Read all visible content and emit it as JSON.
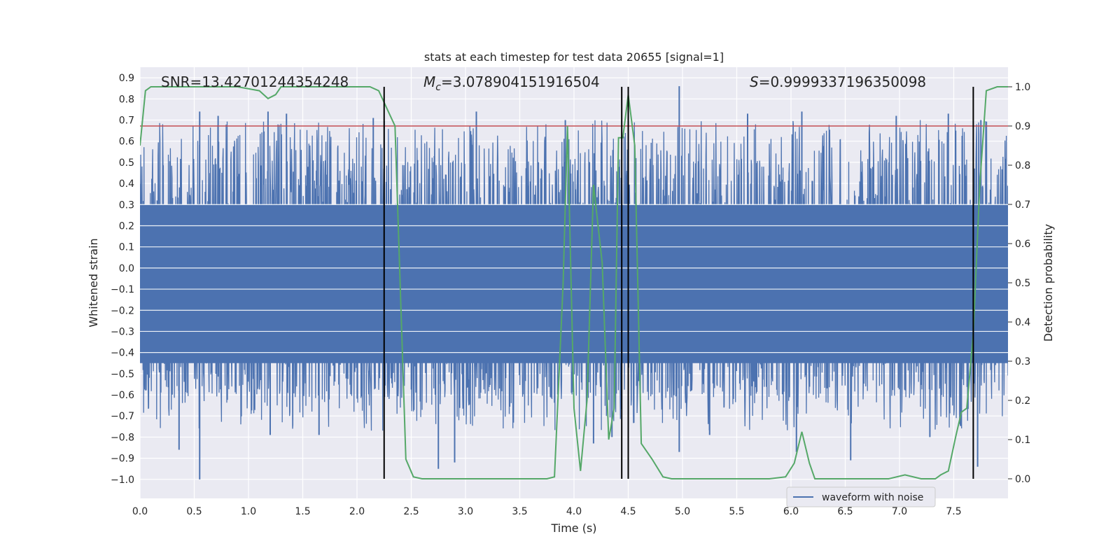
{
  "chart_data": {
    "type": "line",
    "title": "stats at each timestep for test data 20655 [signal=1]",
    "xlabel": "Time (s)",
    "ylabel": "Whitened strain",
    "ylabel_right": "Detection probability",
    "xlim": [
      0.0,
      8.0
    ],
    "ylim": [
      -1.09,
      0.95
    ],
    "ylim_right": [
      -0.05,
      1.05
    ],
    "x_ticks": [
      "0.0",
      "0.5",
      "1.0",
      "1.5",
      "2.0",
      "2.5",
      "3.0",
      "3.5",
      "4.0",
      "4.5",
      "5.0",
      "5.5",
      "6.0",
      "6.5",
      "7.0",
      "7.5"
    ],
    "y_ticks": [
      "0.9",
      "0.8",
      "0.7",
      "0.6",
      "0.5",
      "0.4",
      "0.3",
      "0.2",
      "0.1",
      "0.0",
      "−0.1",
      "−0.2",
      "−0.3",
      "−0.4",
      "−0.5",
      "−0.6",
      "−0.7",
      "−0.8",
      "−0.9",
      "−1.0"
    ],
    "y_ticks_right": [
      "1.0",
      "0.9",
      "0.8",
      "0.7",
      "0.6",
      "0.5",
      "0.4",
      "0.3",
      "0.2",
      "0.1",
      "0.0"
    ],
    "grid": true,
    "legend": {
      "entries": [
        "waveform with noise"
      ],
      "position": "lower-right"
    },
    "annotations": {
      "snr": "SNR=13.42701244354248",
      "mc_symbol": "M",
      "mc_sub": "c",
      "mc_value": "=3.078904151916504",
      "s_symbol": "S",
      "s_value": "=0.9999337196350098"
    },
    "threshold_right": 0.9,
    "vlines_x": [
      2.25,
      4.44,
      4.5,
      7.68
    ],
    "waveform": {
      "name": "waveform with noise",
      "color": "#4c72b0",
      "range": [
        0.0,
        8.0
      ],
      "core_band": [
        -0.45,
        0.3
      ],
      "spike_peaks_x": [
        0.55,
        0.72,
        1.18,
        1.35,
        2.15,
        3.1,
        3.92,
        4.5,
        4.97,
        5.6,
        6.1,
        6.97,
        7.45,
        7.75
      ],
      "spike_peaks_y": [
        0.74,
        0.72,
        0.74,
        0.73,
        0.71,
        0.74,
        0.7,
        0.72,
        0.86,
        0.73,
        0.74,
        0.72,
        0.73,
        0.7
      ],
      "spike_troughs_x": [
        0.36,
        0.55,
        1.2,
        1.65,
        2.75,
        2.9,
        4.18,
        4.35,
        4.97,
        5.25,
        6.05,
        6.55,
        7.28,
        7.72
      ],
      "spike_troughs_y": [
        -0.86,
        -1.0,
        -0.79,
        -0.79,
        -0.95,
        -0.92,
        -0.83,
        -0.8,
        -0.87,
        -0.79,
        -0.87,
        -0.91,
        -0.8,
        -0.94
      ]
    },
    "probability": {
      "color": "#55a868",
      "x": [
        0.0,
        0.05,
        0.1,
        0.3,
        0.5,
        0.7,
        0.9,
        1.1,
        1.18,
        1.25,
        1.3,
        1.4,
        1.6,
        1.8,
        2.0,
        2.12,
        2.2,
        2.3,
        2.35,
        2.45,
        2.52,
        2.6,
        3.0,
        3.5,
        3.75,
        3.82,
        3.9,
        3.94,
        4.0,
        4.06,
        4.12,
        4.18,
        4.26,
        4.32,
        4.37,
        4.41,
        4.45,
        4.5,
        4.56,
        4.62,
        4.72,
        4.82,
        4.9,
        5.2,
        5.6,
        5.8,
        5.95,
        6.03,
        6.1,
        6.17,
        6.22,
        6.5,
        6.9,
        7.05,
        7.2,
        7.33,
        7.38,
        7.45,
        7.52,
        7.57,
        7.62,
        7.68,
        7.74,
        7.8,
        7.9,
        8.0
      ],
      "y": [
        0.85,
        0.99,
        1.0,
        1.0,
        1.0,
        1.0,
        1.0,
        0.99,
        0.97,
        0.98,
        1.0,
        1.0,
        1.0,
        1.0,
        1.0,
        1.0,
        0.99,
        0.93,
        0.9,
        0.05,
        0.005,
        0.0,
        0.0,
        0.0,
        0.0,
        0.005,
        0.5,
        0.9,
        0.18,
        0.02,
        0.2,
        0.75,
        0.55,
        0.1,
        0.18,
        0.87,
        0.87,
        0.98,
        0.85,
        0.09,
        0.05,
        0.005,
        0.0,
        0.0,
        0.0,
        0.0,
        0.005,
        0.04,
        0.12,
        0.04,
        0.0,
        0.0,
        0.0,
        0.01,
        0.0,
        0.0,
        0.01,
        0.02,
        0.11,
        0.17,
        0.18,
        0.37,
        0.75,
        0.99,
        1.0,
        1.0
      ]
    },
    "colors": {
      "background": "#eaeaf2",
      "grid": "#ffffff",
      "threshold": "#c44e52",
      "vline": "#000000"
    }
  }
}
